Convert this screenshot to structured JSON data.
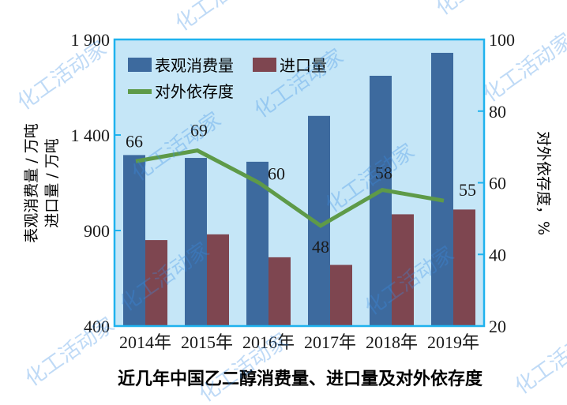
{
  "chart_data": {
    "type": "bar",
    "title": "近几年中国乙二醇消费量、进口量及对外依存度",
    "categories": [
      "2014年",
      "2015年",
      "2016年",
      "2017年",
      "2018年",
      "2019年"
    ],
    "series": [
      {
        "name": "表观消费量",
        "type": "bar",
        "axis": "left",
        "color": "#3d6a9e",
        "values": [
          1295,
          1280,
          1260,
          1500,
          1710,
          1830
        ]
      },
      {
        "name": "进口量",
        "type": "bar",
        "axis": "left",
        "color": "#7e4650",
        "values": [
          850,
          880,
          760,
          720,
          985,
          1010
        ]
      },
      {
        "name": "对外依存度",
        "type": "line",
        "axis": "right",
        "color": "#5e9a48",
        "values": [
          66,
          69,
          60,
          48,
          58,
          55
        ],
        "labels": [
          "66",
          "69",
          "60",
          "48",
          "58",
          "55"
        ]
      }
    ],
    "ylabel": "表观消费量 / 万吨\n进口量 / 万吨",
    "ylabel_lines": [
      "表观消费量 / 万吨",
      "进口量 / 万吨"
    ],
    "y2label": "对外依存度，%",
    "xlabel": "",
    "ylim": [
      400,
      1900
    ],
    "y2lim": [
      20,
      100
    ],
    "yticks": [
      "400",
      "900",
      "1 400",
      "1 900"
    ],
    "y2ticks": [
      "20",
      "40",
      "60",
      "80",
      "100"
    ],
    "legend": {
      "position": "top-left inside",
      "entries": [
        "表观消费量",
        "进口量",
        "对外依存度"
      ]
    },
    "grid": false,
    "plot_background": "#c5e6f7",
    "axis_color": "#1fb2ee"
  },
  "watermark": {
    "text": "化工活动家"
  }
}
